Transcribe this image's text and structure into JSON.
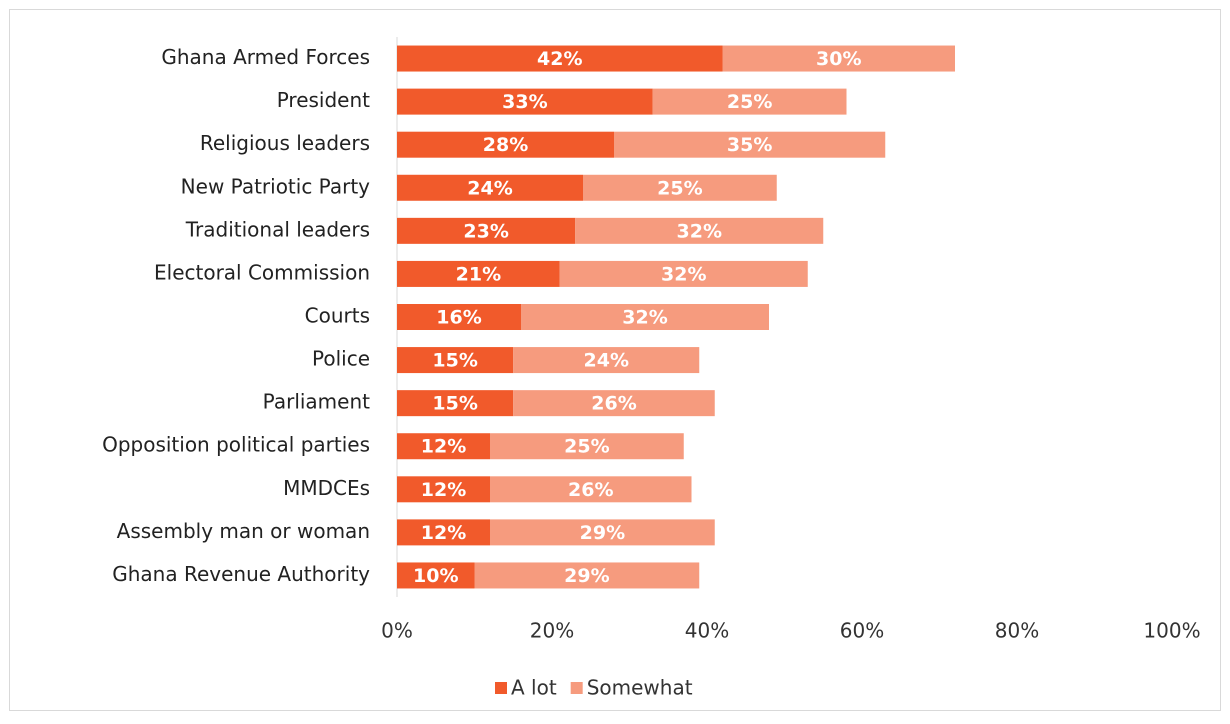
{
  "chart_data": {
    "type": "stacked-barh",
    "categories": [
      "Ghana Armed Forces",
      "President",
      "Religious leaders",
      "New Patriotic Party",
      "Traditional leaders",
      "Electoral Commission",
      "Courts",
      "Police",
      "Parliament",
      "Opposition political parties",
      "MMDCEs",
      "Assembly man or woman",
      "Ghana Revenue Authority"
    ],
    "series": [
      {
        "name": "A lot",
        "color": "#f15a2b",
        "values": [
          42,
          33,
          28,
          24,
          23,
          21,
          16,
          15,
          15,
          12,
          12,
          12,
          10
        ],
        "value_labels": [
          "42%",
          "33%",
          "28%",
          "24%",
          "23%",
          "21%",
          "16%",
          "15%",
          "15%",
          "12%",
          "12%",
          "12%",
          "10%"
        ]
      },
      {
        "name": "Somewhat",
        "color": "#f69b7e",
        "values": [
          30,
          25,
          35,
          25,
          32,
          32,
          32,
          24,
          26,
          25,
          26,
          29,
          29
        ],
        "value_labels": [
          "30%",
          "25%",
          "35%",
          "25%",
          "32%",
          "32%",
          "32%",
          "24%",
          "26%",
          "25%",
          "26%",
          "29%",
          "29%"
        ]
      }
    ],
    "xlim": [
      0,
      100
    ],
    "xticks": [
      {
        "value": 0,
        "label": "0%"
      },
      {
        "value": 20,
        "label": "20%"
      },
      {
        "value": 40,
        "label": "40%"
      },
      {
        "value": 60,
        "label": "60%"
      },
      {
        "value": 80,
        "label": "80%"
      },
      {
        "value": 100,
        "label": "100%"
      }
    ],
    "legend": "bottom"
  }
}
